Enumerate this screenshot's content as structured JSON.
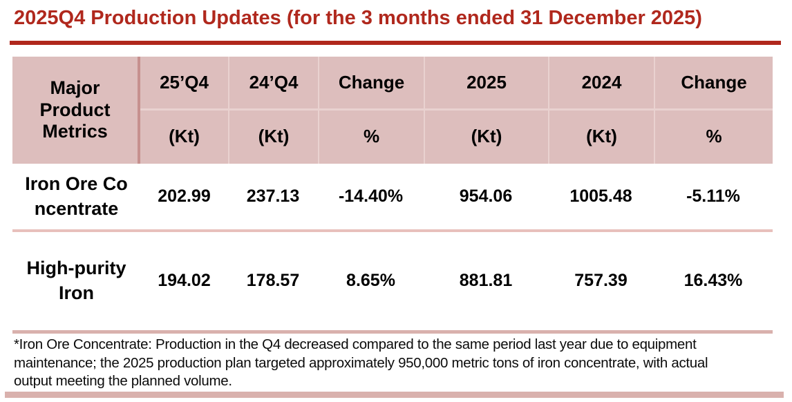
{
  "title": "2025Q4 Production Updates (for the 3 months ended 31 December 2025)",
  "colors": {
    "accent_red": "#B0281D",
    "header_pink": "#DDBEBD",
    "divider_dark_pink": "#C6908E",
    "divider_light_pink": "#E9D2D0",
    "row_divider_pink": "#E8C0BC",
    "section_bar_pink": "#D9B1AD",
    "text_black": "#000000"
  },
  "table": {
    "header": {
      "metrics_label": "Major\nProduct\nMetrics",
      "columns": [
        {
          "period": "25’Q4",
          "unit": "(Kt)"
        },
        {
          "period": "24’Q4",
          "unit": "(Kt)"
        },
        {
          "period": "Change",
          "unit": "%"
        },
        {
          "period": "2025",
          "unit": "(Kt)"
        },
        {
          "period": "2024",
          "unit": "(Kt)"
        },
        {
          "period": "Change",
          "unit": "%"
        }
      ]
    },
    "rows": [
      {
        "metric": "Iron Ore Co\nncentrate",
        "values": [
          "202.99",
          "237.13",
          "-14.40%",
          "954.06",
          "1005.48",
          "-5.11%"
        ]
      },
      {
        "metric": "High-purity\nIron",
        "values": [
          "194.02",
          "178.57",
          "8.65%",
          "881.81",
          "757.39",
          "16.43%"
        ]
      }
    ]
  },
  "footnote": "*Iron Ore Concentrate: Production in the Q4 decreased compared to the same period last year due to equipment\nmaintenance; the 2025 production plan targeted approximately 950,000 metric tons of iron concentrate, with actual\noutput meeting the planned volume."
}
